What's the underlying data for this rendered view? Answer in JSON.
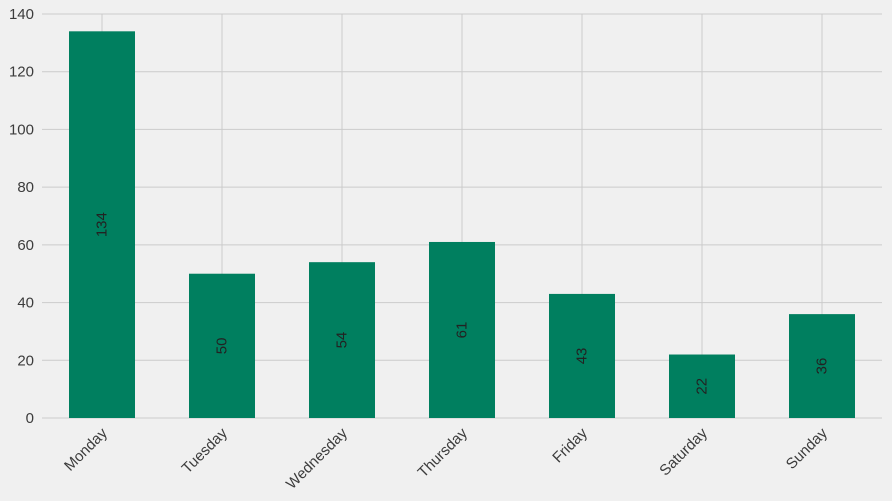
{
  "chart_data": {
    "type": "bar",
    "title": "",
    "xlabel": "",
    "ylabel": "",
    "categories": [
      "Monday",
      "Tuesday",
      "Wednesday",
      "Thursday",
      "Friday",
      "Saturday",
      "Sunday"
    ],
    "values": [
      134,
      50,
      54,
      61,
      43,
      22,
      36
    ],
    "data_labels": [
      "134",
      "50",
      "54",
      "61",
      "43",
      "22",
      "36"
    ],
    "ylim": [
      0,
      140
    ],
    "yticks": [
      0,
      20,
      40,
      60,
      80,
      100,
      120,
      140
    ],
    "ytick_labels": [
      "0",
      "20",
      "40",
      "60",
      "80",
      "100",
      "120",
      "140"
    ],
    "grid": true,
    "legend": "none",
    "colors": {
      "bar": "#007f5f",
      "background": "#f0f0f0",
      "grid": "#cbcbcb",
      "text": "#3c3c3c",
      "data_label": "#222222"
    }
  }
}
